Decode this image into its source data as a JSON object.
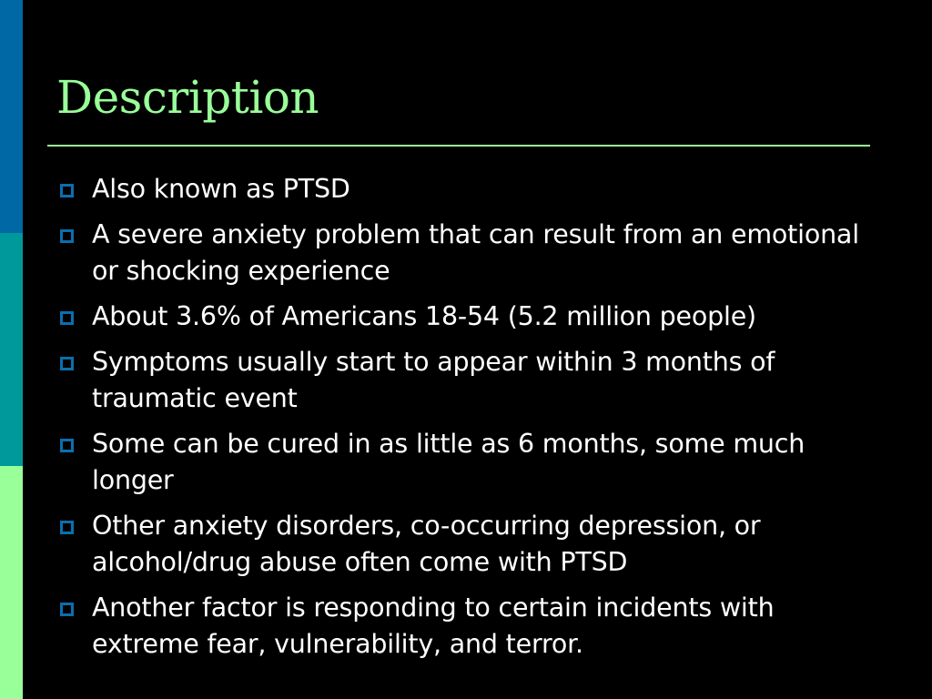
{
  "slide": {
    "title": "Description",
    "accent_colors": {
      "bar_top": "#0068a4",
      "bar_middle": "#00999b",
      "bar_bottom": "#99ff99",
      "title": "#99ff99",
      "bullet": "#0a6fae"
    },
    "bullet_icon": "hollow-square-icon",
    "bullets": [
      "Also known as PTSD",
      "A severe anxiety problem that can result from an emotional or shocking experience",
      "About 3.6% of Americans 18-54 (5.2 million people)",
      "Symptoms usually start to appear within 3 months of traumatic event",
      "Some can be cured in as little as 6 months, some much longer",
      "Other anxiety disorders, co-occurring depression, or alcohol/drug abuse often  come with PTSD",
      "Another factor is responding to certain incidents with extreme fear, vulnerability, and terror."
    ]
  }
}
